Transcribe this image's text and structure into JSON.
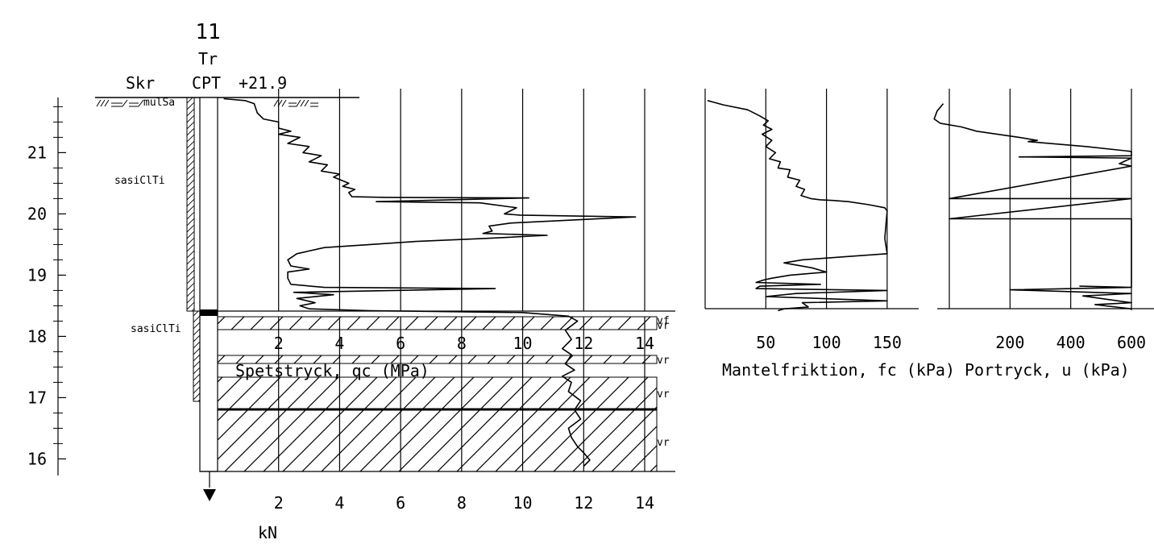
{
  "header": {
    "point_id": "11",
    "method_top": "Tr",
    "method_bottom": "CPT",
    "level": "+21.9",
    "column_label": "Skr"
  },
  "soil": {
    "top_code": "mulSa",
    "upper_code": "sasiClTi",
    "lower_code": "sasiClTi",
    "hatch_labels": [
      "vf",
      "vr",
      "vr",
      "vr",
      "vr"
    ]
  },
  "elevation_axis": {
    "ticks": [
      {
        "value": 21,
        "label": "21"
      },
      {
        "value": 20,
        "label": "20"
      },
      {
        "value": 19,
        "label": "19"
      },
      {
        "value": 18,
        "label": "18"
      },
      {
        "value": 17,
        "label": "17"
      },
      {
        "value": 16,
        "label": "16"
      }
    ],
    "range": [
      15.75,
      21.9
    ]
  },
  "chart_data": [
    {
      "type": "line",
      "name": "qc",
      "xlabel": "Spetstryck, qc (MPa)",
      "xlim": [
        0,
        14
      ],
      "x_ticks": [
        {
          "value": 2,
          "label": "2"
        },
        {
          "value": 4,
          "label": "4"
        },
        {
          "value": 6,
          "label": "6"
        },
        {
          "value": 8,
          "label": "8"
        },
        {
          "value": 10,
          "label": "10"
        },
        {
          "value": 12,
          "label": "12"
        },
        {
          "value": 14,
          "label": "14"
        }
      ],
      "series": [
        {
          "points": [
            [
              0.2,
              21.88
            ],
            [
              0.9,
              21.85
            ],
            [
              1.2,
              21.8
            ],
            [
              1.3,
              21.65
            ],
            [
              1.5,
              21.55
            ],
            [
              2.0,
              21.5
            ],
            [
              2.0,
              21.4
            ],
            [
              2.4,
              21.35
            ],
            [
              2.0,
              21.3
            ],
            [
              2.7,
              21.25
            ],
            [
              2.3,
              21.15
            ],
            [
              3.0,
              21.1
            ],
            [
              2.8,
              21.0
            ],
            [
              3.4,
              20.95
            ],
            [
              3.0,
              20.85
            ],
            [
              3.6,
              20.8
            ],
            [
              3.4,
              20.7
            ],
            [
              4.0,
              20.65
            ],
            [
              3.8,
              20.6
            ],
            [
              4.3,
              20.5
            ],
            [
              4.1,
              20.45
            ],
            [
              4.5,
              20.4
            ],
            [
              4.3,
              20.35
            ],
            [
              4.4,
              20.28
            ],
            [
              5.5,
              20.27
            ],
            [
              10.2,
              20.26
            ],
            [
              5.2,
              20.2
            ],
            [
              8.6,
              20.18
            ],
            [
              9.8,
              20.1
            ],
            [
              9.4,
              20.0
            ],
            [
              9.9,
              19.98
            ],
            [
              13.7,
              19.95
            ],
            [
              9.6,
              19.85
            ],
            [
              8.9,
              19.8
            ],
            [
              9.0,
              19.72
            ],
            [
              8.7,
              19.68
            ],
            [
              10.8,
              19.65
            ],
            [
              8.8,
              19.6
            ],
            [
              6.5,
              19.55
            ],
            [
              5.0,
              19.5
            ],
            [
              3.5,
              19.45
            ],
            [
              2.6,
              19.35
            ],
            [
              2.3,
              19.25
            ],
            [
              2.4,
              19.15
            ],
            [
              3.0,
              19.1
            ],
            [
              2.3,
              19.05
            ],
            [
              2.3,
              18.95
            ],
            [
              2.4,
              18.85
            ],
            [
              3.5,
              18.8
            ],
            [
              9.1,
              18.78
            ],
            [
              2.5,
              18.72
            ],
            [
              3.8,
              18.68
            ],
            [
              2.6,
              18.62
            ],
            [
              3.2,
              18.55
            ],
            [
              2.7,
              18.5
            ],
            [
              3.0,
              18.45
            ],
            [
              5.0,
              18.42
            ],
            [
              10.0,
              18.39
            ],
            [
              11.5,
              18.33
            ],
            [
              11.8,
              18.25
            ],
            [
              11.4,
              18.1
            ],
            [
              11.6,
              17.95
            ],
            [
              11.3,
              17.8
            ],
            [
              11.6,
              17.7
            ],
            [
              11.4,
              17.55
            ],
            [
              11.7,
              17.45
            ],
            [
              11.3,
              17.35
            ],
            [
              11.6,
              17.25
            ],
            [
              11.5,
              17.1
            ],
            [
              11.9,
              16.95
            ],
            [
              11.7,
              16.8
            ],
            [
              11.9,
              16.65
            ],
            [
              11.5,
              16.5
            ],
            [
              11.6,
              16.35
            ],
            [
              11.8,
              16.2
            ],
            [
              12.0,
              16.1
            ],
            [
              12.2,
              15.98
            ],
            [
              12.0,
              15.88
            ]
          ]
        }
      ]
    },
    {
      "type": "line",
      "name": "fc",
      "xlabel": "Mantelfriktion, fc (kPa)",
      "xlim": [
        0,
        170
      ],
      "x_ticks": [
        {
          "value": 50,
          "label": "50"
        },
        {
          "value": 100,
          "label": "100"
        },
        {
          "value": 150,
          "label": "150"
        }
      ],
      "series": [
        {
          "points": [
            [
              2,
              21.85
            ],
            [
              15,
              21.78
            ],
            [
              35,
              21.7
            ],
            [
              45,
              21.6
            ],
            [
              52,
              21.52
            ],
            [
              48,
              21.45
            ],
            [
              55,
              21.38
            ],
            [
              47,
              21.3
            ],
            [
              55,
              21.2
            ],
            [
              50,
              21.1
            ],
            [
              58,
              21.0
            ],
            [
              53,
              20.9
            ],
            [
              62,
              20.85
            ],
            [
              60,
              20.75
            ],
            [
              70,
              20.72
            ],
            [
              68,
              20.6
            ],
            [
              78,
              20.55
            ],
            [
              75,
              20.45
            ],
            [
              82,
              20.4
            ],
            [
              79,
              20.3
            ],
            [
              87,
              20.25
            ],
            [
              95,
              20.23
            ],
            [
              105,
              20.22
            ],
            [
              118,
              20.2
            ],
            [
              135,
              20.15
            ],
            [
              148,
              20.1
            ],
            [
              150,
              20.05
            ],
            [
              148,
              19.6
            ],
            [
              150,
              19.35
            ],
            [
              115,
              19.3
            ],
            [
              80,
              19.25
            ],
            [
              65,
              19.2
            ],
            [
              88,
              19.12
            ],
            [
              100,
              19.05
            ],
            [
              70,
              19.0
            ],
            [
              55,
              18.95
            ],
            [
              48,
              18.92
            ],
            [
              42,
              18.88
            ],
            [
              95,
              18.85
            ],
            [
              45,
              18.82
            ],
            [
              42,
              18.78
            ],
            [
              150,
              18.75
            ],
            [
              75,
              18.7
            ],
            [
              50,
              18.65
            ],
            [
              150,
              18.58
            ],
            [
              80,
              18.55
            ],
            [
              85,
              18.48
            ],
            [
              65,
              18.45
            ],
            [
              60,
              18.42
            ]
          ]
        }
      ]
    },
    {
      "type": "line",
      "name": "u",
      "xlabel": "Portryck, u (kPa)",
      "xlim": [
        0,
        600
      ],
      "x_ticks": [
        {
          "value": 200,
          "label": "200"
        },
        {
          "value": 400,
          "label": "400"
        },
        {
          "value": 600,
          "label": "600"
        }
      ],
      "series": [
        {
          "points": [
            [
              -20,
              21.8
            ],
            [
              -40,
              21.68
            ],
            [
              -50,
              21.55
            ],
            [
              -30,
              21.48
            ],
            [
              40,
              21.42
            ],
            [
              90,
              21.35
            ],
            [
              230,
              21.25
            ],
            [
              290,
              21.2
            ],
            [
              260,
              21.18
            ],
            [
              450,
              21.1
            ],
            [
              600,
              21.02
            ],
            [
              600,
              20.95
            ],
            [
              230,
              20.93
            ],
            [
              600,
              20.91
            ],
            [
              560,
              20.82
            ],
            [
              600,
              20.78
            ],
            [
              0,
              20.25
            ],
            [
              600,
              20.25
            ],
            [
              0,
              19.92
            ],
            [
              600,
              19.92
            ],
            [
              600,
              18.8
            ],
            [
              430,
              18.82
            ],
            [
              600,
              18.8
            ],
            [
              200,
              18.76
            ],
            [
              600,
              18.7
            ],
            [
              440,
              18.66
            ],
            [
              600,
              18.55
            ],
            [
              480,
              18.52
            ],
            [
              600,
              18.45
            ],
            [
              600,
              18.43
            ]
          ]
        }
      ]
    }
  ],
  "bottom_scale": {
    "unit": "kN",
    "ticks": [
      {
        "value": 2,
        "label": "2"
      },
      {
        "value": 4,
        "label": "4"
      },
      {
        "value": 6,
        "label": "6"
      },
      {
        "value": 8,
        "label": "8"
      },
      {
        "value": 10,
        "label": "10"
      },
      {
        "value": 12,
        "label": "12"
      },
      {
        "value": 14,
        "label": "14"
      }
    ]
  }
}
